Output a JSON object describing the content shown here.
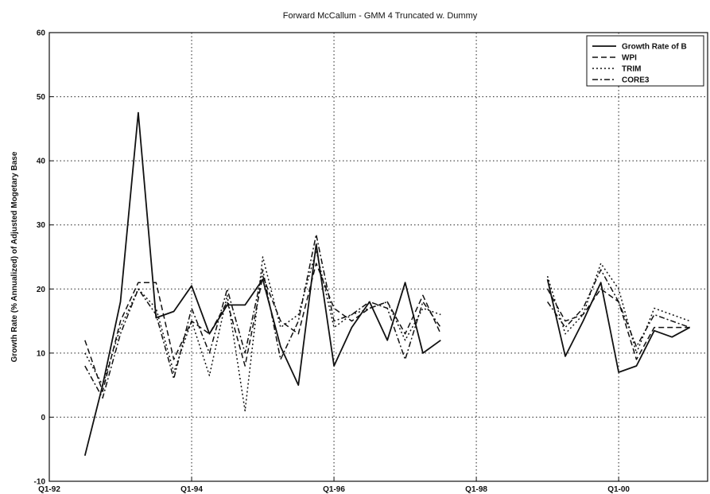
{
  "chart_data": {
    "type": "line",
    "title": "Forward McCallum - GMM 4 Truncated w. Dummy",
    "xlabel": "",
    "ylabel": "Growth Rate (% Annualized) of Adjusted Mogetary Base",
    "x_tick_labels": [
      "Q1-92",
      "Q1-94",
      "Q1-96",
      "Q1-98",
      "Q1-00"
    ],
    "x_tick_positions": [
      0,
      8,
      16,
      24,
      32
    ],
    "xlim": [
      0,
      37
    ],
    "ylim": [
      -10,
      60
    ],
    "y_ticks": [
      -10,
      0,
      10,
      20,
      30,
      40,
      50,
      60
    ],
    "grid": true,
    "legend_position": "top-right",
    "series": [
      {
        "name": "Growth Rate of B",
        "dash": "",
        "points": [
          [
            2,
            -6
          ],
          [
            3,
            5
          ],
          [
            4,
            18
          ],
          [
            5,
            47.5
          ],
          [
            6,
            15.5
          ],
          [
            7,
            16.5
          ],
          [
            8,
            20.5
          ],
          [
            9,
            13
          ],
          [
            10,
            17.5
          ],
          [
            11,
            17.5
          ],
          [
            12,
            21.5
          ],
          [
            13,
            11
          ],
          [
            14,
            5
          ],
          [
            15,
            27
          ],
          [
            16,
            8
          ],
          [
            17,
            14
          ],
          [
            18,
            18
          ],
          [
            19,
            12
          ],
          [
            20,
            21
          ],
          [
            21,
            10
          ],
          [
            22,
            12
          ],
          [
            28,
            21.5
          ],
          [
            29,
            9.5
          ],
          [
            30,
            15
          ],
          [
            31,
            21
          ],
          [
            32,
            7
          ],
          [
            33,
            8
          ],
          [
            34,
            13.5
          ],
          [
            35,
            12.5
          ],
          [
            36,
            14
          ]
        ]
      },
      {
        "name": "WPI",
        "dash": "7,4",
        "points": [
          [
            2,
            12
          ],
          [
            3,
            4
          ],
          [
            4,
            15
          ],
          [
            5,
            21
          ],
          [
            6,
            21
          ],
          [
            7,
            9
          ],
          [
            8,
            15
          ],
          [
            9,
            13
          ],
          [
            10,
            18
          ],
          [
            11,
            8
          ],
          [
            12,
            22
          ],
          [
            13,
            15
          ],
          [
            14,
            13
          ],
          [
            15,
            24
          ],
          [
            16,
            17
          ],
          [
            17,
            15
          ],
          [
            18,
            17
          ],
          [
            19,
            18
          ],
          [
            20,
            13
          ],
          [
            21,
            19
          ],
          [
            22,
            13
          ],
          [
            28,
            20
          ],
          [
            29,
            15
          ],
          [
            30,
            16
          ],
          [
            31,
            20
          ],
          [
            32,
            18
          ],
          [
            33,
            9
          ],
          [
            34,
            14
          ],
          [
            35,
            14
          ],
          [
            36,
            14
          ]
        ]
      },
      {
        "name": "TRIM",
        "dash": "2,3",
        "points": [
          [
            2,
            10
          ],
          [
            3,
            5
          ],
          [
            4,
            14
          ],
          [
            5,
            20
          ],
          [
            6,
            17
          ],
          [
            7,
            7
          ],
          [
            8,
            15
          ],
          [
            9,
            6.5
          ],
          [
            10,
            19
          ],
          [
            11,
            1
          ],
          [
            12,
            25
          ],
          [
            13,
            14
          ],
          [
            14,
            16
          ],
          [
            15,
            26
          ],
          [
            16,
            14
          ],
          [
            17,
            16
          ],
          [
            18,
            17
          ],
          [
            19,
            18
          ],
          [
            20,
            12
          ],
          [
            21,
            17
          ],
          [
            22,
            16
          ],
          [
            28,
            22
          ],
          [
            29,
            13
          ],
          [
            30,
            16
          ],
          [
            31,
            24
          ],
          [
            32,
            20
          ],
          [
            33,
            10
          ],
          [
            34,
            17
          ],
          [
            35,
            16
          ],
          [
            36,
            15
          ]
        ]
      },
      {
        "name": "CORE3",
        "dash": "7,3,2,3",
        "points": [
          [
            2,
            8
          ],
          [
            3,
            3
          ],
          [
            4,
            13
          ],
          [
            5,
            20
          ],
          [
            6,
            16
          ],
          [
            7,
            6
          ],
          [
            8,
            17
          ],
          [
            9,
            10
          ],
          [
            10,
            20
          ],
          [
            11,
            10
          ],
          [
            12,
            23
          ],
          [
            13,
            9
          ],
          [
            14,
            15
          ],
          [
            15,
            28.5
          ],
          [
            16,
            15
          ],
          [
            17,
            16
          ],
          [
            18,
            18
          ],
          [
            19,
            17
          ],
          [
            20,
            9
          ],
          [
            21,
            18
          ],
          [
            22,
            14
          ],
          [
            28,
            18
          ],
          [
            29,
            14
          ],
          [
            30,
            17
          ],
          [
            31,
            23
          ],
          [
            32,
            18
          ],
          [
            33,
            11
          ],
          [
            34,
            16
          ],
          [
            35,
            15
          ],
          [
            36,
            14
          ]
        ]
      }
    ]
  }
}
